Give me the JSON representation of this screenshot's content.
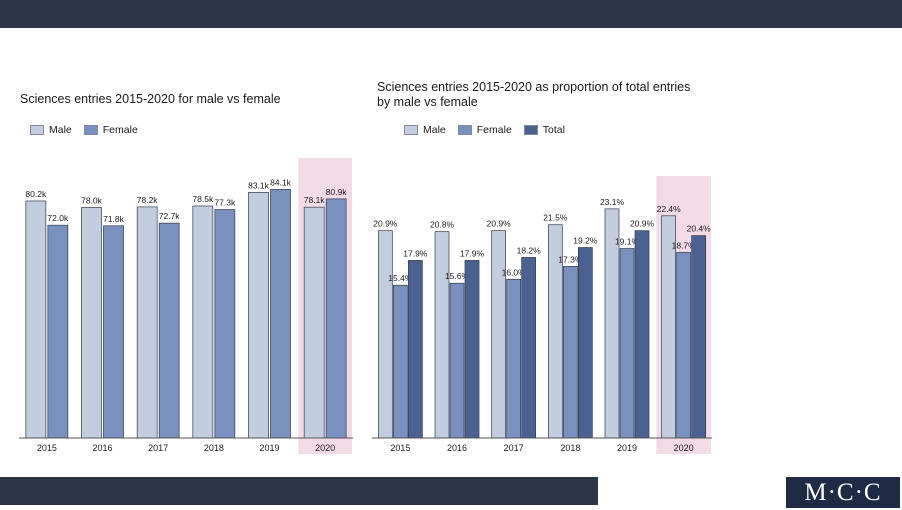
{
  "logo_text": "M·C·C",
  "colors": {
    "male": "#c3cde0",
    "female": "#7891bf",
    "total": "#4a6191",
    "highlight": "#f3dbe6",
    "bar_edge": "#333a4a"
  },
  "chart_data": [
    {
      "type": "bar",
      "title": "Sciences entries 2015-2020 for male vs female",
      "categories": [
        "2015",
        "2016",
        "2017",
        "2018",
        "2019",
        "2020"
      ],
      "highlight_category": "2020",
      "ylim": [
        0,
        90
      ],
      "series": [
        {
          "name": "Male",
          "color_key": "male",
          "values": [
            80.2,
            78.0,
            78.2,
            78.5,
            83.1,
            78.1
          ],
          "labels": [
            "80.2k",
            "78.0k",
            "78.2k",
            "78.5k",
            "83.1k",
            "78.1k"
          ]
        },
        {
          "name": "Female",
          "color_key": "female",
          "values": [
            72.0,
            71.8,
            72.7,
            77.3,
            84.1,
            80.9
          ],
          "labels": [
            "72.0k",
            "71.8k",
            "72.7k",
            "77.3k",
            "84.1k",
            "80.9k"
          ]
        }
      ]
    },
    {
      "type": "bar",
      "title": "Sciences entries 2015-2020 as proportion of total entries by male vs female",
      "categories": [
        "2015",
        "2016",
        "2017",
        "2018",
        "2019",
        "2020"
      ],
      "highlight_category": "2020",
      "ylim": [
        0,
        25
      ],
      "series": [
        {
          "name": "Male",
          "color_key": "male",
          "values": [
            20.9,
            20.8,
            20.9,
            21.5,
            23.1,
            22.4
          ],
          "labels": [
            "20.9%",
            "20.8%",
            "20.9%",
            "21.5%",
            "23.1%",
            "22.4%"
          ]
        },
        {
          "name": "Female",
          "color_key": "female",
          "values": [
            15.4,
            15.6,
            16.0,
            17.3,
            19.1,
            18.7
          ],
          "labels": [
            "15.4%",
            "15.6%",
            "16.0%",
            "17.3%",
            "19.1%",
            "18.7%"
          ]
        },
        {
          "name": "Total",
          "color_key": "total",
          "values": [
            17.9,
            17.9,
            18.2,
            19.2,
            20.9,
            20.4
          ],
          "labels": [
            "17.9%",
            "17.9%",
            "18.2%",
            "19.2%",
            "20.9%",
            "20.4%"
          ]
        }
      ]
    }
  ]
}
